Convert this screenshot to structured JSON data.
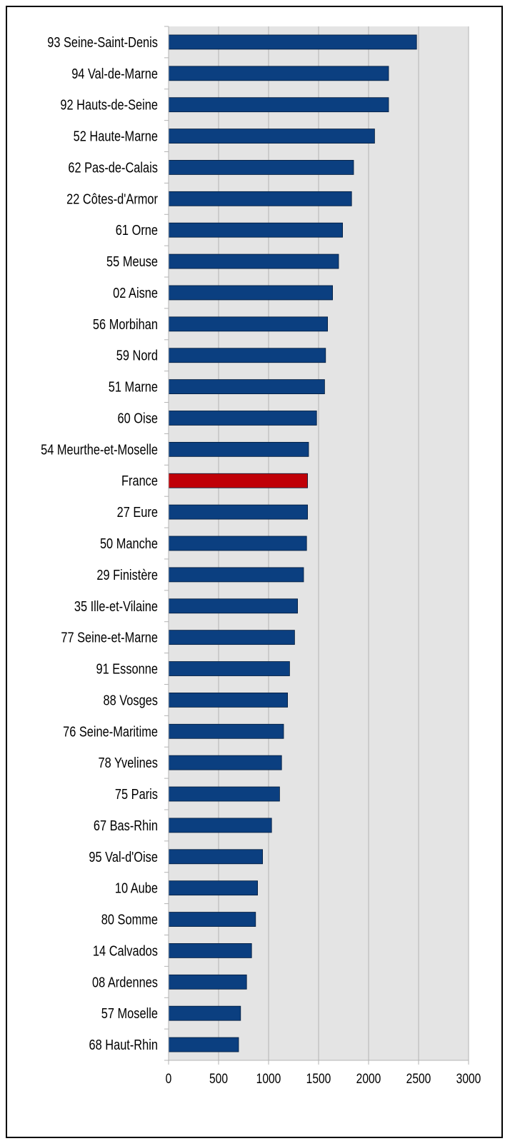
{
  "chart_data": {
    "type": "bar",
    "orientation": "horizontal",
    "categories": [
      "93 Seine-Saint-Denis",
      "94 Val-de-Marne",
      "92 Hauts-de-Seine",
      "52 Haute-Marne",
      "62 Pas-de-Calais",
      "22 Côtes-d'Armor",
      "61 Orne",
      "55 Meuse",
      "02 Aisne",
      "56 Morbihan",
      "59 Nord",
      "51 Marne",
      "60 Oise",
      "54 Meurthe-et-Moselle",
      "France",
      "27 Eure",
      "50 Manche",
      "29 Finistère",
      "35 Ille-et-Vilaine",
      "77 Seine-et-Marne",
      "91 Essonne",
      "88 Vosges",
      "76 Seine-Maritime",
      "78 Yvelines",
      "75 Paris",
      "67 Bas-Rhin",
      "95 Val-d'Oise",
      "10 Aube",
      "80 Somme",
      "14 Calvados",
      "08 Ardennes",
      "57 Moselle",
      "68 Haut-Rhin"
    ],
    "values": [
      2480,
      2200,
      2200,
      2060,
      1850,
      1830,
      1740,
      1700,
      1640,
      1590,
      1570,
      1560,
      1480,
      1400,
      1390,
      1390,
      1380,
      1350,
      1290,
      1260,
      1210,
      1190,
      1150,
      1130,
      1110,
      1030,
      940,
      890,
      870,
      830,
      780,
      720,
      700
    ],
    "highlight_category": "France",
    "colors": {
      "bar": "#0b3f80",
      "highlight": "#c00008",
      "plot_bg": "#e4e4e4",
      "grid": "#b3b3b3",
      "axis": "#b3b3b3",
      "bar_stroke": "#001a3a"
    },
    "xlim": [
      0,
      3000
    ],
    "xticks": [
      "0",
      "500",
      "1000",
      "1500",
      "2000",
      "2500",
      "3000"
    ],
    "grid": true,
    "legend": "none",
    "title": "",
    "xlabel": "",
    "ylabel": ""
  }
}
